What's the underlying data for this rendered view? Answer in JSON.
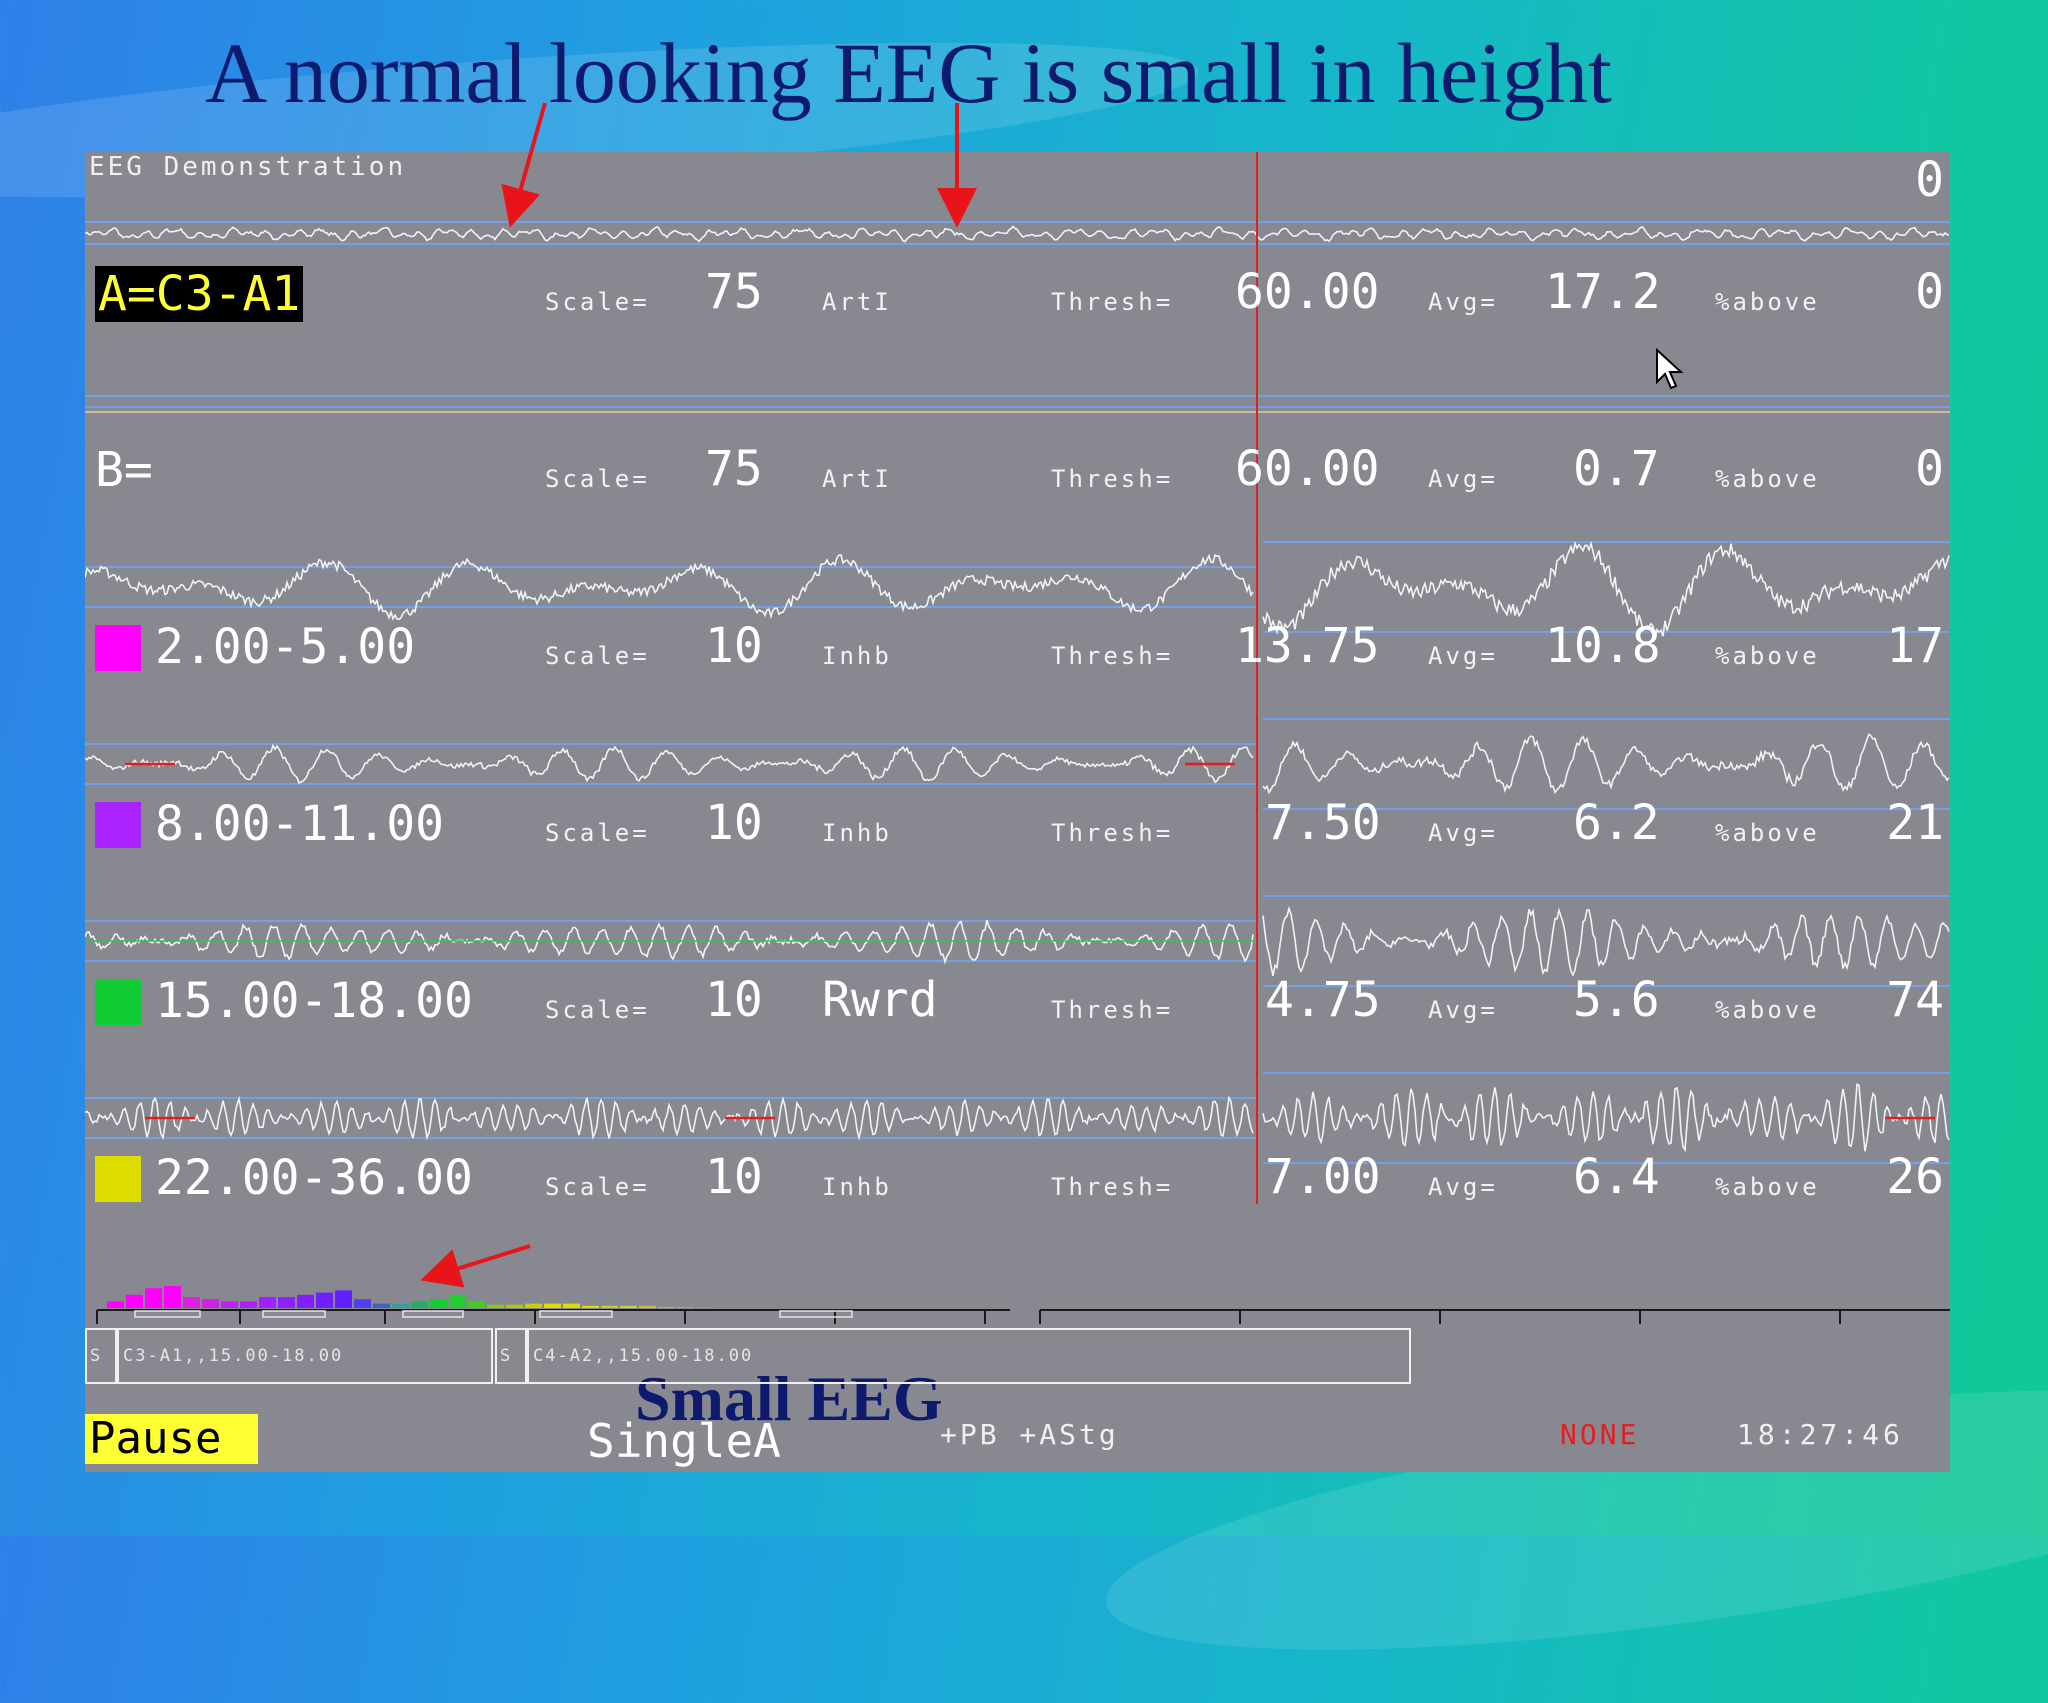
{
  "slide": {
    "title": "A normal looking EEG is small in height",
    "annotation": "Small EEG"
  },
  "app": {
    "title": "EEG Demonstration",
    "top_counter": "0",
    "scale_label": "Scale=",
    "thresh_label": "Thresh=",
    "avg_label": "Avg=",
    "above_label": "%above"
  },
  "channels": [
    {
      "label": "A=C3-A1",
      "scale": "75",
      "mode": "ArtI",
      "thresh": "60.00",
      "avg": "17.2",
      "above": "0"
    },
    {
      "label": "B=",
      "scale": "75",
      "mode": "ArtI",
      "thresh": "60.00",
      "avg": "0.7",
      "above": "0"
    }
  ],
  "bands": [
    {
      "label": "2.00-5.00",
      "color": "#ff00ff",
      "scale": "10",
      "mode": "Inhb",
      "thresh": "13.75",
      "avg": "10.8",
      "above": "17"
    },
    {
      "label": "8.00-11.00",
      "color": "#aa22ff",
      "scale": "10",
      "mode": "Inhb",
      "thresh": "7.50",
      "avg": "6.2",
      "above": "21"
    },
    {
      "label": "15.00-18.00",
      "color": "#11cc33",
      "scale": "10",
      "mode": "Rwrd",
      "thresh": "4.75",
      "avg": "5.6",
      "above": "74"
    },
    {
      "label": "22.00-36.00",
      "color": "#dddd00",
      "scale": "10",
      "mode": "Inhb",
      "thresh": "7.00",
      "avg": "6.4",
      "above": "26"
    }
  ],
  "segments": [
    {
      "tag": "S",
      "text": "C3-A1,,15.00-18.00"
    },
    {
      "tag": "S",
      "text": "C4-A2,,15.00-18.00"
    }
  ],
  "status": {
    "pause": "Pause",
    "mode": "SingleA",
    "flags": "+PB +AStg",
    "state": "NONE",
    "clock": "18:27:46"
  }
}
